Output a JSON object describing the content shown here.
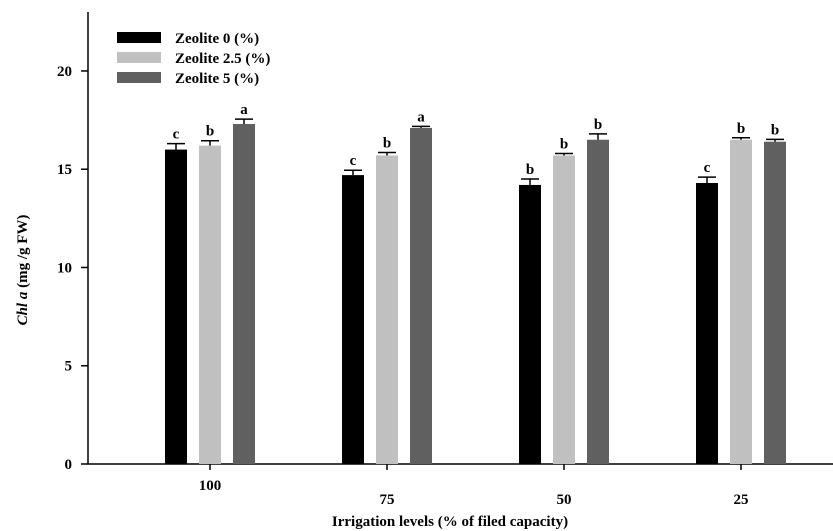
{
  "chart_data": {
    "type": "bar",
    "xlabel": "Irrigation levels (% of filed capacity)",
    "ylabel_italic": "Chl a",
    "ylabel_rest": " (mg /g FW)",
    "ylim": [
      0,
      23
    ],
    "yticks": [
      0,
      5,
      10,
      15,
      20
    ],
    "grid": false,
    "legend_position": "top-left",
    "categories": [
      "100",
      "75",
      "50",
      "25"
    ],
    "series": [
      {
        "name": "Zeolite 0 (%)",
        "color": "#000000",
        "values": [
          16.0,
          14.7,
          14.2,
          14.3
        ],
        "errors": [
          0.3,
          0.25,
          0.3,
          0.3
        ],
        "letters": [
          "c",
          "c",
          "b",
          "c"
        ]
      },
      {
        "name": "Zeolite 2.5 (%)",
        "color": "#c0c0c0",
        "values": [
          16.2,
          15.7,
          15.7,
          16.5
        ],
        "errors": [
          0.25,
          0.15,
          0.1,
          0.1
        ],
        "letters": [
          "b",
          "b",
          "b",
          "b"
        ]
      },
      {
        "name": "Zeolite 5 (%)",
        "color": "#606060",
        "values": [
          17.3,
          17.1,
          16.5,
          16.4
        ],
        "errors": [
          0.25,
          0.08,
          0.3,
          0.12
        ],
        "letters": [
          "a",
          "a",
          "b",
          "b"
        ]
      }
    ]
  }
}
